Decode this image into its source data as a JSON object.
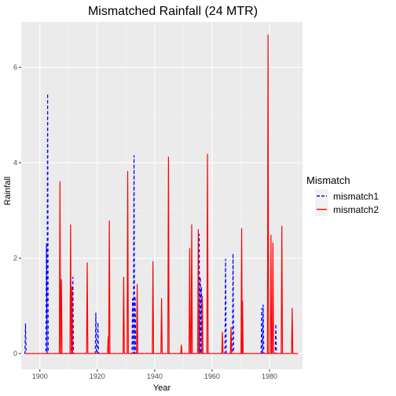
{
  "chart_data": {
    "type": "line",
    "title": "Mismatched Rainfall (24 MTR)",
    "xlabel": "Year",
    "ylabel": "Rainfall",
    "xlim": [
      1893.5,
      1991.5
    ],
    "ylim": [
      -0.33,
      6.95
    ],
    "x_ticks": [
      1900,
      1920,
      1940,
      1960,
      1980
    ],
    "y_ticks": [
      0,
      2,
      4,
      6
    ],
    "grid": true,
    "background": "#ebebeb",
    "legend": {
      "title": "Mismatch",
      "position": "right"
    },
    "baseline": 0,
    "series": [
      {
        "name": "mismatch1",
        "color": "#0000ff",
        "dash": "dashed",
        "x_range": [
          1895,
          1990
        ],
        "spikes": [
          [
            1895,
            0.63
          ],
          [
            1902.3,
            2.3
          ],
          [
            1902.7,
            5.45
          ],
          [
            1911.5,
            1.6
          ],
          [
            1919.5,
            0.85
          ],
          [
            1920.2,
            0.65
          ],
          [
            1932.3,
            1.15
          ],
          [
            1932.8,
            4.15
          ],
          [
            1933.2,
            1.2
          ],
          [
            1955.5,
            2.5
          ],
          [
            1955.9,
            1.6
          ],
          [
            1956.3,
            1.4
          ],
          [
            1964.7,
            1.98
          ],
          [
            1967.3,
            2.1
          ],
          [
            1977.3,
            0.95
          ],
          [
            1977.8,
            1.02
          ],
          [
            1982.2,
            0.62
          ]
        ]
      },
      {
        "name": "mismatch2",
        "color": "#ff0000",
        "dash": "solid",
        "x_range": [
          1895,
          1990
        ],
        "spikes": [
          [
            1907,
            3.6
          ],
          [
            1907.5,
            1.55
          ],
          [
            1910.7,
            2.7
          ],
          [
            1911.2,
            1.4
          ],
          [
            1916.5,
            1.9
          ],
          [
            1924.2,
            2.78
          ],
          [
            1923.8,
            0.35
          ],
          [
            1929.2,
            1.6
          ],
          [
            1930.6,
            3.82
          ],
          [
            1933.9,
            1.45
          ],
          [
            1939.4,
            1.93
          ],
          [
            1942.4,
            1.15
          ],
          [
            1944.8,
            4.12
          ],
          [
            1949.3,
            0.18
          ],
          [
            1952.2,
            2.2
          ],
          [
            1952.9,
            2.7
          ],
          [
            1955.2,
            2.6
          ],
          [
            1956.6,
            1.2
          ],
          [
            1958.4,
            4.18
          ],
          [
            1963.6,
            0.45
          ],
          [
            1966.6,
            0.55
          ],
          [
            1970.3,
            2.62
          ],
          [
            1970.6,
            1.1
          ],
          [
            1979.5,
            6.68
          ],
          [
            1980.5,
            2.48
          ],
          [
            1981.2,
            2.32
          ],
          [
            1984.3,
            2.67
          ],
          [
            1987.9,
            0.95
          ]
        ]
      }
    ]
  }
}
